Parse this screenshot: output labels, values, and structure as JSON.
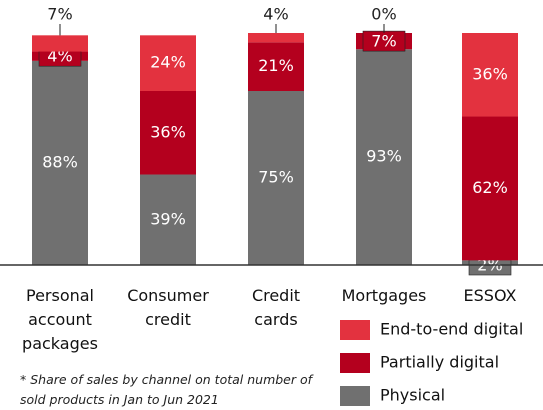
{
  "chart_data": {
    "type": "stacked_bar",
    "categories": [
      "Personal account packages",
      "Consumer credit",
      "Credit cards",
      "Mortgages",
      "ESSOX"
    ],
    "series": [
      {
        "name": "Physical",
        "color": "#707070",
        "values": [
          88,
          39,
          75,
          93,
          2
        ],
        "value_labels": [
          "88%",
          "39%",
          "75%",
          "93%",
          "2%"
        ]
      },
      {
        "name": "Partially digital",
        "color": "#b4001e",
        "values": [
          4,
          36,
          21,
          7,
          62
        ],
        "value_labels": [
          "4%",
          "36%",
          "21%",
          "7%",
          "62%"
        ]
      },
      {
        "name": "End-to-end digital",
        "color": "#e3323f",
        "values": [
          7,
          24,
          4,
          0,
          36
        ],
        "value_labels": [
          "7%",
          "24%",
          "4%",
          "0%",
          "36%"
        ]
      }
    ],
    "ylim": [
      0,
      100
    ],
    "footnote": "* Share of sales by channel on total number of sold products in Jan to Jun 2021"
  }
}
